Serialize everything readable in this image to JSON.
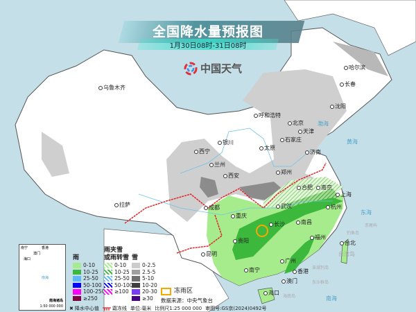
{
  "header": {
    "title": "全国降水量预报图",
    "subtitle": "1月30日08时-31日08时"
  },
  "logo": {
    "text": "中国天气"
  },
  "cities": [
    "乌鲁木齐",
    "哈尔滨",
    "长春",
    "沈阳",
    "呼和浩特",
    "北京",
    "天津",
    "石家庄",
    "太原",
    "济南",
    "银川",
    "西宁",
    "兰州",
    "西安",
    "郑州",
    "合肥",
    "南京",
    "上海",
    "武汉",
    "杭州",
    "成都",
    "重庆",
    "长沙",
    "南昌",
    "贵阳",
    "福州",
    "拉萨",
    "昆明",
    "南宁",
    "广州",
    "香港",
    "澳门",
    "台北",
    "海口"
  ],
  "seas": [
    "渤海",
    "黄海",
    "东海",
    "南海",
    "台湾岛",
    "钓鱼岛",
    "赤尾屿",
    "澎湖列岛",
    "东沙群岛",
    "海南岛"
  ],
  "inset": {
    "title": "南海诸岛",
    "scale": "1:50 000 000",
    "labels": [
      "南宁",
      "香港",
      "海口",
      "澳门",
      "南海"
    ]
  },
  "legend": {
    "rain": {
      "title": "雨",
      "items": [
        {
          "label": "0-10",
          "color": "#a6ec8c"
        },
        {
          "label": "10-25",
          "color": "#3cb83c"
        },
        {
          "label": "25-50",
          "color": "#62b8f6"
        },
        {
          "label": "50-100",
          "color": "#0000fe"
        },
        {
          "label": "100-250",
          "color": "#fe00fe"
        },
        {
          "label": "≥250",
          "color": "#7f0040"
        }
      ]
    },
    "mixed": {
      "title": "雨夹雪",
      "title2": "或雨转雪",
      "items": [
        {
          "label": "0-10",
          "color": "#a6ec8c"
        },
        {
          "label": "10-25",
          "color": "#3cb83c"
        },
        {
          "label": "25-50",
          "color": "#62b8f6"
        },
        {
          "label": "50-100",
          "color": "#0000fe"
        },
        {
          "label": "≥100",
          "color": "#fe00fe"
        }
      ]
    },
    "snow": {
      "title": "雪",
      "items": [
        {
          "label": "0-2.5",
          "color": "#cccccc"
        },
        {
          "label": "2.5-5",
          "color": "#a0a0a0"
        },
        {
          "label": "5-10",
          "color": "#707070"
        },
        {
          "label": "10-20",
          "color": "#404040"
        },
        {
          "label": "20-30",
          "color": "#7a3cf0"
        },
        {
          "label": "≥30",
          "color": "#460082"
        }
      ]
    },
    "freezing_rain": {
      "label": "冻雨区",
      "color": "#f5a800"
    },
    "source": "数据来源：中央气象台",
    "center_label": "降水中心值",
    "frost_label": "霜冻线",
    "unit": "单位:毫米",
    "scale": "比例尺1:25 000 000",
    "review": "审图号:GS京(2024)0492号"
  }
}
